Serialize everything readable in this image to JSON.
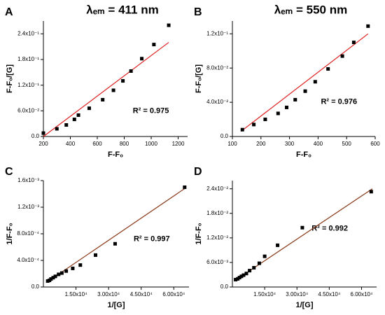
{
  "chart_data": [
    {
      "type": "scatter",
      "panel": "A",
      "title": "λₑₘ = 411 nm",
      "xlabel": "F-F₀",
      "ylabel": "F-F₀/[G]",
      "annotation": "R² = 0.975",
      "x": [
        200,
        300,
        370,
        430,
        460,
        540,
        640,
        720,
        790,
        850,
        930,
        1020,
        1130
      ],
      "values": [
        0.008,
        0.018,
        0.027,
        0.04,
        0.05,
        0.066,
        0.086,
        0.108,
        0.13,
        0.153,
        0.182,
        0.215,
        0.26
      ],
      "fit_x": [
        200,
        1130
      ],
      "fit_y": [
        0.0,
        0.22
      ],
      "color": "#000000",
      "fit_color": "#e02020",
      "xlim": [
        200,
        1270
      ],
      "xticks": [
        200,
        400,
        600,
        800,
        1000,
        1200
      ],
      "ylim": [
        0,
        0.27
      ],
      "yticks": [
        {
          "value": 0,
          "label": "0.0"
        },
        {
          "value": 0.06,
          "label": "6.0x10⁻²"
        },
        {
          "value": 0.12,
          "label": "1.2x10⁻¹"
        },
        {
          "value": 0.18,
          "label": "1.8x10⁻¹"
        },
        {
          "value": 0.24,
          "label": "2.4x10⁻¹"
        }
      ]
    },
    {
      "type": "scatter",
      "panel": "B",
      "title": "λₑₘ = 550 nm",
      "xlabel": "F-F₀",
      "ylabel": "F-F₀/[G]",
      "annotation": "R² = 0.976",
      "x": [
        135,
        175,
        215,
        260,
        290,
        320,
        355,
        390,
        435,
        485,
        525,
        575
      ],
      "values": [
        0.008,
        0.014,
        0.02,
        0.027,
        0.034,
        0.043,
        0.053,
        0.064,
        0.079,
        0.094,
        0.11,
        0.129
      ],
      "fit_x": [
        130,
        575
      ],
      "fit_y": [
        0.006,
        0.12
      ],
      "color": "#000000",
      "fit_color": "#e02020",
      "xlim": [
        100,
        600
      ],
      "xticks": [
        100,
        200,
        300,
        400,
        500,
        600
      ],
      "ylim": [
        0,
        0.135
      ],
      "yticks": [
        {
          "value": 0,
          "label": "0.0"
        },
        {
          "value": 0.04,
          "label": "4.0x10⁻²"
        },
        {
          "value": 0.08,
          "label": "8.0x10⁻²"
        },
        {
          "value": 0.12,
          "label": "1.2x10⁻¹"
        }
      ]
    },
    {
      "type": "scatter",
      "panel": "C",
      "xlabel": "1/[G]",
      "ylabel": "1/F-F₀",
      "annotation": "R² = 0.997",
      "x": [
        2000,
        2800,
        3500,
        4500,
        5500,
        7000,
        8500,
        10500,
        13500,
        17000,
        24000,
        33000,
        65000
      ],
      "values": [
        9e-05,
        0.0001,
        0.00012,
        0.00014,
        0.00016,
        0.00019,
        0.00021,
        0.00024,
        0.00028,
        0.00033,
        0.00048,
        0.00065,
        0.0015
      ],
      "fit_x": [
        1500,
        65000
      ],
      "fit_y": [
        7e-05,
        0.00148
      ],
      "color": "#000000",
      "fit_color": "#8b3a1a",
      "xlim": [
        0,
        67000
      ],
      "xticks": [
        {
          "value": 15000,
          "label": "1.50x10⁴"
        },
        {
          "value": 30000,
          "label": "3.00x10⁴"
        },
        {
          "value": 45000,
          "label": "4.50x10⁴"
        },
        {
          "value": 60000,
          "label": "6.00x10⁴"
        }
      ],
      "ylim": [
        0,
        0.0016
      ],
      "yticks": [
        {
          "value": 0,
          "label": "0.0"
        },
        {
          "value": 0.0004,
          "label": "4.0x10⁻⁴"
        },
        {
          "value": 0.0008,
          "label": "8.0x10⁻⁴"
        },
        {
          "value": 0.0012,
          "label": "1.2x10⁻³"
        },
        {
          "value": 0.0016,
          "label": "1.6x10⁻³"
        }
      ]
    },
    {
      "type": "scatter",
      "panel": "D",
      "xlabel": "1/[G]",
      "ylabel": "1/F-F₀",
      "annotation": "R² = 0.992",
      "x": [
        1500,
        2500,
        3300,
        4200,
        5200,
        6500,
        8000,
        10000,
        12500,
        15000,
        21000,
        32500,
        64500
      ],
      "values": [
        0.0018,
        0.002,
        0.0023,
        0.0026,
        0.0029,
        0.0033,
        0.004,
        0.0047,
        0.0058,
        0.0075,
        0.0102,
        0.0145,
        0.0233
      ],
      "fit_x": [
        1000,
        65000
      ],
      "fit_y": [
        0.0015,
        0.024
      ],
      "color": "#000000",
      "fit_color": "#8b3a1a",
      "xlim": [
        0,
        67000
      ],
      "xticks": [
        {
          "value": 15000,
          "label": "1.50x10⁴"
        },
        {
          "value": 30000,
          "label": "3.00x10⁴"
        },
        {
          "value": 45000,
          "label": "4.50x10⁴"
        },
        {
          "value": 60000,
          "label": "6.00x10⁴"
        }
      ],
      "ylim": [
        0,
        0.026
      ],
      "yticks": [
        {
          "value": 0,
          "label": "0.0"
        },
        {
          "value": 0.006,
          "label": "6.0x10⁻³"
        },
        {
          "value": 0.012,
          "label": "1.2x10⁻²"
        },
        {
          "value": 0.018,
          "label": "1.8x10⁻²"
        },
        {
          "value": 0.024,
          "label": "2.4x10⁻²"
        }
      ]
    }
  ]
}
